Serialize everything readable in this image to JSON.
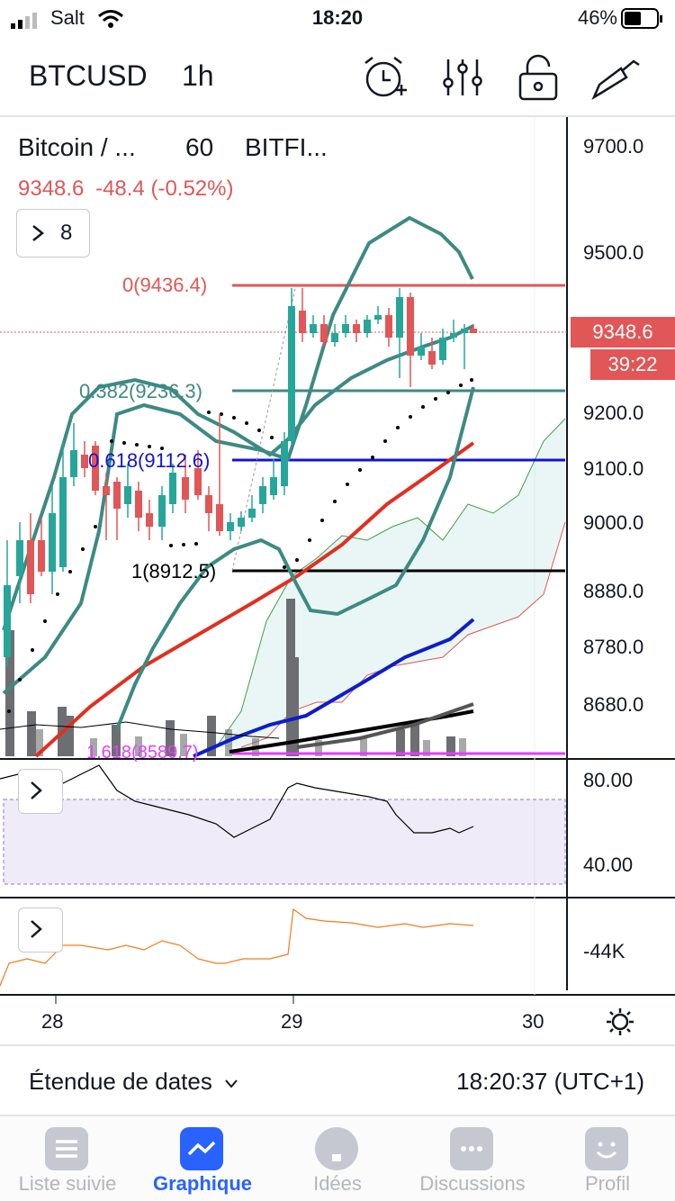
{
  "status_bar": {
    "carrier": "Salt",
    "time": "18:20",
    "battery": "46%"
  },
  "header": {
    "symbol": "BTCUSD",
    "interval": "1h",
    "icons": [
      "alarm-add-icon",
      "indicators-icon",
      "lock-icon",
      "drawing-tools-icon"
    ]
  },
  "legend": {
    "name": "Bitcoin / ...",
    "interval": "60",
    "exchange": "BITFI...",
    "price": "9348.6",
    "change": "-48.4",
    "change_pct": "(-0.52%)",
    "indicator_count": "8"
  },
  "fibonacci": {
    "level_0": "0(9436.4)",
    "level_0382": "0.382(9236.3)",
    "level_0618": "0.618(9112.6)",
    "level_1": "1(8912.5)",
    "level_1618": "1.618(8589.7)"
  },
  "price_axis": [
    "9700.0",
    "9500.0",
    "9200.0",
    "9100.0",
    "9000.0",
    "8880.0",
    "8780.0",
    "8680.0"
  ],
  "current_price_tag": "9348.6",
  "countdown_tag": "39:22",
  "rsi_axis": [
    "80.00",
    "40.00"
  ],
  "obv_axis": [
    "-44K"
  ],
  "time_axis": [
    "28",
    "29",
    "30"
  ],
  "footer": {
    "range_label": "Étendue de dates",
    "clock": "18:20:37 (UTC+1)"
  },
  "tabs": [
    {
      "label": "Liste suivie",
      "icon": "watchlist-icon"
    },
    {
      "label": "Graphique",
      "icon": "chart-icon",
      "active": true
    },
    {
      "label": "Idées",
      "icon": "ideas-icon"
    },
    {
      "label": "Discussions",
      "icon": "chat-icon"
    },
    {
      "label": "Profil",
      "icon": "profile-icon"
    }
  ],
  "colors": {
    "up": "#26a69a",
    "down": "#e15656",
    "accent": "#2962ff",
    "bollinger": "#3d8a84"
  },
  "chart_data": {
    "type": "candlestick",
    "xlabel": "",
    "ylabel": "",
    "x_ticks": [
      "28",
      "29",
      "30"
    ],
    "ylim": [
      8590,
      9730
    ],
    "current_price": 9348.6,
    "horizontal_levels": [
      9436.4,
      9236.3,
      9112.6,
      8912.5,
      8589.7
    ]
  }
}
